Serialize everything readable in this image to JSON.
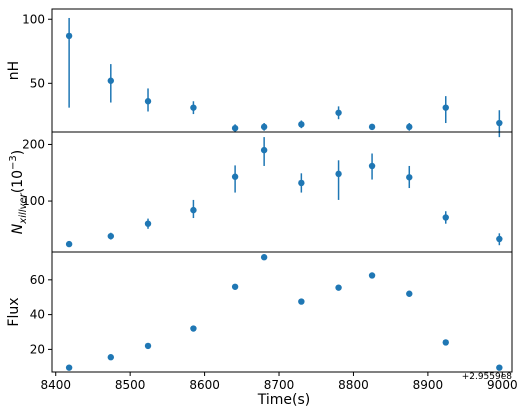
{
  "chart_data": {
    "type": "scatter",
    "color": "#1f77b4",
    "x_offset_label": "+2.9559e8",
    "xlabel": "Time(s)",
    "xlim": [
      8395,
      9013
    ],
    "xticks": [
      8400,
      8500,
      8600,
      8700,
      8800,
      8900,
      9000
    ],
    "x": [
      8418,
      8474,
      8524,
      8585,
      8641,
      8680,
      8730,
      8780,
      8825,
      8875,
      8924,
      8996
    ],
    "panels": [
      {
        "id": "nH",
        "ylabel": "nH",
        "ylim": [
          12,
          108
        ],
        "yticks": [
          50,
          100
        ],
        "values": [
          87,
          52,
          36,
          31,
          15,
          16,
          18,
          27,
          16,
          16,
          31,
          19
        ],
        "err_lo": [
          56,
          17,
          8,
          5,
          3,
          3,
          3,
          5,
          2,
          3,
          12,
          11
        ],
        "err_hi": [
          14,
          13,
          10,
          5,
          3,
          3,
          3,
          5,
          2,
          3,
          9,
          10
        ]
      },
      {
        "id": "xillver",
        "ylabel_main": "N",
        "ylabel_sub": "xillver",
        "ylabel_paren": "(10",
        "ylabel_sup": "−3",
        "ylabel_close": ")",
        "ylim": [
          10,
          222
        ],
        "yticks": [
          100,
          200
        ],
        "values": [
          24,
          38,
          60,
          84,
          143,
          190,
          132,
          148,
          162,
          142,
          71,
          33
        ],
        "err_lo": [
          3,
          6,
          9,
          14,
          28,
          28,
          17,
          46,
          24,
          19,
          11,
          11
        ],
        "err_hi": [
          3,
          6,
          9,
          18,
          20,
          23,
          17,
          24,
          22,
          20,
          11,
          10
        ]
      },
      {
        "id": "flux",
        "ylabel": "Flux",
        "ylim": [
          7,
          76
        ],
        "yticks": [
          20,
          40,
          60
        ],
        "values": [
          9.5,
          15.5,
          22,
          32,
          56,
          73,
          47.5,
          55.5,
          62.5,
          52,
          24,
          9.5
        ],
        "err_lo": [
          0,
          0,
          0,
          0,
          0,
          0,
          0,
          0,
          0,
          0,
          0,
          0
        ],
        "err_hi": [
          0,
          0,
          0,
          0,
          0,
          0,
          0,
          0,
          0,
          0,
          0,
          0
        ]
      }
    ]
  }
}
